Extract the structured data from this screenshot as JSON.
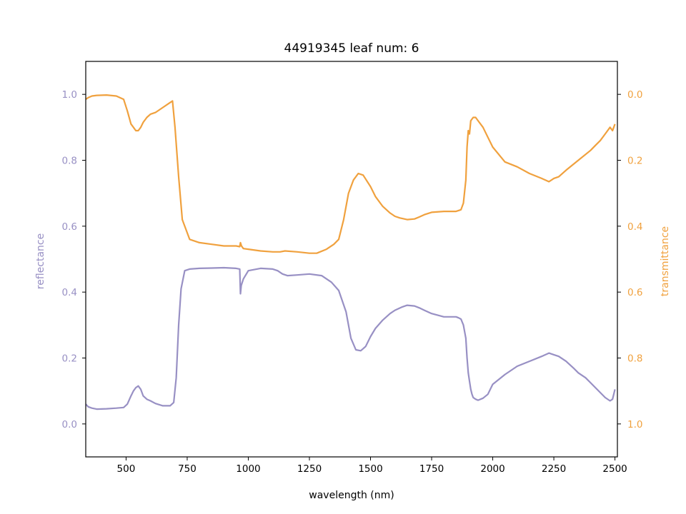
{
  "chart_data": {
    "type": "line",
    "title": "44919345 leaf num: 6",
    "xlabel": "wavelength (nm)",
    "ylabel_left": "reflectance",
    "ylabel_right": "transmittance",
    "xlim": [
      335,
      2510
    ],
    "ylim_left": [
      -0.1,
      1.1
    ],
    "ylim_right": [
      1.1,
      -0.1
    ],
    "right_axis_inverted": true,
    "x_ticks": [
      "500",
      "750",
      "1000",
      "1250",
      "1500",
      "1750",
      "2000",
      "2250",
      "2500"
    ],
    "y_ticks_left": [
      "0.0",
      "0.2",
      "0.4",
      "0.6",
      "0.8",
      "1.0"
    ],
    "y_ticks_right": [
      "0.0",
      "0.2",
      "0.4",
      "0.6",
      "0.8",
      "1.0"
    ],
    "colors": {
      "reflectance": "#9890c4",
      "transmittance": "#f0a13e",
      "axis": "#000000"
    },
    "series": [
      {
        "name": "reflectance",
        "axis": "left",
        "x": [
          335,
          345,
          360,
          380,
          420,
          460,
          490,
          505,
          520,
          530,
          540,
          550,
          560,
          570,
          585,
          600,
          620,
          650,
          680,
          695,
          705,
          715,
          725,
          740,
          760,
          800,
          850,
          900,
          950,
          965,
          968,
          971,
          980,
          1000,
          1050,
          1100,
          1120,
          1140,
          1160,
          1200,
          1250,
          1300,
          1340,
          1370,
          1400,
          1420,
          1440,
          1460,
          1480,
          1500,
          1520,
          1550,
          1580,
          1600,
          1630,
          1650,
          1680,
          1700,
          1720,
          1750,
          1800,
          1850,
          1860,
          1870,
          1880,
          1890,
          1895,
          1900,
          1905,
          1910,
          1915,
          1920,
          1930,
          1940,
          1960,
          1980,
          2000,
          2050,
          2100,
          2150,
          2200,
          2230,
          2250,
          2270,
          2300,
          2330,
          2350,
          2380,
          2400,
          2420,
          2440,
          2460,
          2480,
          2490,
          2500
        ],
        "y": [
          0.06,
          0.052,
          0.048,
          0.045,
          0.046,
          0.048,
          0.05,
          0.06,
          0.085,
          0.1,
          0.11,
          0.115,
          0.105,
          0.085,
          0.075,
          0.07,
          0.062,
          0.055,
          0.055,
          0.065,
          0.14,
          0.3,
          0.41,
          0.465,
          0.47,
          0.472,
          0.473,
          0.474,
          0.472,
          0.47,
          0.395,
          0.42,
          0.44,
          0.465,
          0.472,
          0.47,
          0.465,
          0.455,
          0.45,
          0.452,
          0.455,
          0.45,
          0.43,
          0.405,
          0.34,
          0.26,
          0.225,
          0.222,
          0.235,
          0.265,
          0.29,
          0.315,
          0.335,
          0.345,
          0.355,
          0.36,
          0.358,
          0.352,
          0.345,
          0.335,
          0.325,
          0.325,
          0.322,
          0.318,
          0.3,
          0.26,
          0.2,
          0.155,
          0.13,
          0.105,
          0.09,
          0.08,
          0.075,
          0.072,
          0.078,
          0.09,
          0.12,
          0.15,
          0.175,
          0.19,
          0.205,
          0.215,
          0.21,
          0.205,
          0.19,
          0.17,
          0.155,
          0.14,
          0.125,
          0.11,
          0.095,
          0.08,
          0.07,
          0.075,
          0.105
        ]
      },
      {
        "name": "transmittance",
        "axis": "right",
        "x": [
          335,
          345,
          360,
          380,
          420,
          460,
          490,
          505,
          520,
          530,
          540,
          550,
          560,
          570,
          585,
          600,
          620,
          650,
          680,
          690,
          700,
          715,
          730,
          750,
          760,
          800,
          850,
          900,
          950,
          965,
          968,
          972,
          980,
          1000,
          1050,
          1100,
          1130,
          1150,
          1200,
          1250,
          1280,
          1320,
          1350,
          1370,
          1390,
          1410,
          1430,
          1450,
          1470,
          1500,
          1520,
          1550,
          1580,
          1600,
          1620,
          1650,
          1680,
          1700,
          1720,
          1750,
          1800,
          1850,
          1870,
          1880,
          1890,
          1895,
          1900,
          1905,
          1910,
          1920,
          1930,
          1940,
          1960,
          1980,
          2000,
          2050,
          2100,
          2150,
          2200,
          2230,
          2250,
          2270,
          2300,
          2350,
          2400,
          2420,
          2440,
          2460,
          2480,
          2490,
          2500
        ],
        "y": [
          0.015,
          0.01,
          0.005,
          0.003,
          0.002,
          0.005,
          0.015,
          0.05,
          0.09,
          0.1,
          0.11,
          0.11,
          0.1,
          0.085,
          0.07,
          0.06,
          0.055,
          0.04,
          0.025,
          0.02,
          0.1,
          0.25,
          0.38,
          0.42,
          0.44,
          0.45,
          0.455,
          0.46,
          0.46,
          0.462,
          0.45,
          0.46,
          0.468,
          0.47,
          0.475,
          0.478,
          0.478,
          0.475,
          0.478,
          0.482,
          0.482,
          0.47,
          0.455,
          0.44,
          0.38,
          0.3,
          0.26,
          0.24,
          0.245,
          0.28,
          0.31,
          0.34,
          0.36,
          0.37,
          0.375,
          0.38,
          0.378,
          0.372,
          0.365,
          0.358,
          0.355,
          0.355,
          0.35,
          0.33,
          0.26,
          0.16,
          0.11,
          0.12,
          0.08,
          0.07,
          0.07,
          0.08,
          0.1,
          0.13,
          0.16,
          0.205,
          0.22,
          0.24,
          0.255,
          0.265,
          0.255,
          0.25,
          0.23,
          0.2,
          0.17,
          0.155,
          0.14,
          0.12,
          0.1,
          0.11,
          0.09
        ]
      }
    ]
  }
}
